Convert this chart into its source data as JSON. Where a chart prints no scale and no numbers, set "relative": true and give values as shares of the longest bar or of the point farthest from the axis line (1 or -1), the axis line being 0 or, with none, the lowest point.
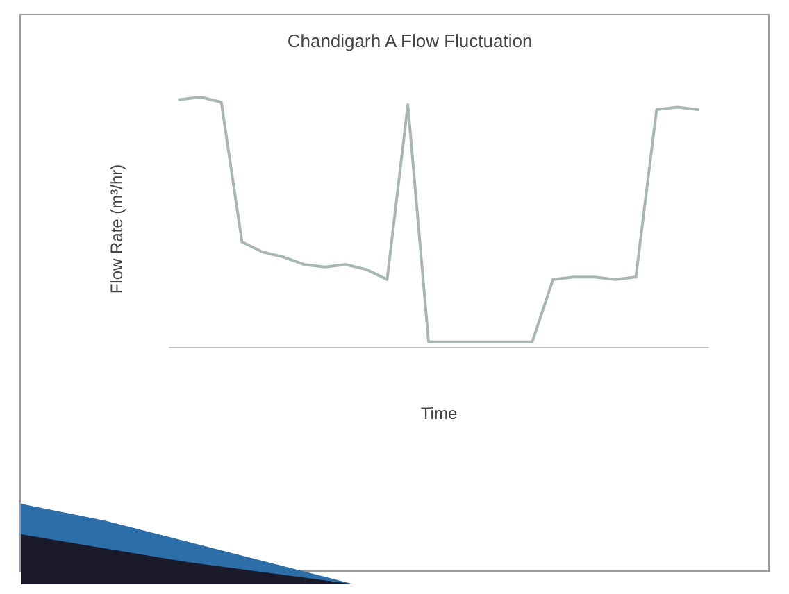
{
  "chart_data": {
    "type": "line",
    "title": "Chandigarh A Flow Fluctuation",
    "xlabel": "Time",
    "ylabel": "Flow Rate (m³/hr)",
    "categories": [
      null,
      null,
      null,
      null,
      null,
      null,
      null,
      null,
      null,
      null,
      null,
      null,
      null,
      null,
      null,
      null,
      null,
      null,
      null,
      null,
      null,
      null,
      null,
      null,
      null,
      null
    ],
    "series": [
      {
        "color": "#a8b8b0",
        "values": [
          0.99,
          1.0,
          0.98,
          0.42,
          0.38,
          0.36,
          0.33,
          0.32,
          0.33,
          0.31,
          0.27,
          0.97,
          0.02,
          0.02,
          0.02,
          0.02,
          0.02,
          0.02,
          0.27,
          0.28,
          0.28,
          0.27,
          0.28,
          0.95,
          0.96,
          0.95
        ]
      }
    ],
    "relative": true,
    "grid": false,
    "marker": "none",
    "line_style": "solid"
  }
}
